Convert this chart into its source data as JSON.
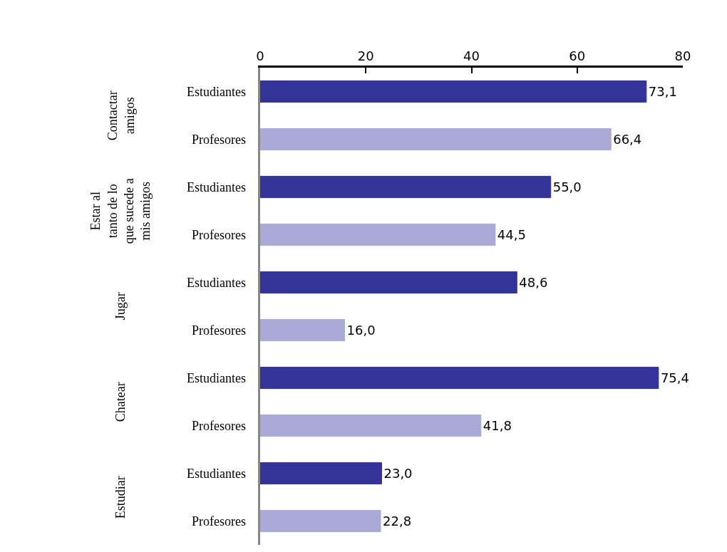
{
  "chart_data": {
    "type": "bar",
    "orientation": "horizontal",
    "categories": [
      "Contactar amigos",
      "Estar al tanto de lo que sucede a mis amigos",
      "Jugar",
      "Chatear",
      "Estudiar"
    ],
    "series": [
      {
        "name": "Estudiantes",
        "color": "#333399",
        "values": [
          73.1,
          55.0,
          48.6,
          75.4,
          23.0
        ],
        "value_labels": [
          "73,1",
          "55,0",
          "48,6",
          "75,4",
          "23,0"
        ]
      },
      {
        "name": "Profesores",
        "color": "#aaaad6",
        "values": [
          66.4,
          44.5,
          16.0,
          41.8,
          22.8
        ],
        "value_labels": [
          "66,4",
          "44,5",
          "16,0",
          "41,8",
          "22,8"
        ]
      }
    ],
    "xlim": [
      0,
      80
    ],
    "xticks": [
      0,
      20,
      40,
      60,
      80
    ]
  }
}
